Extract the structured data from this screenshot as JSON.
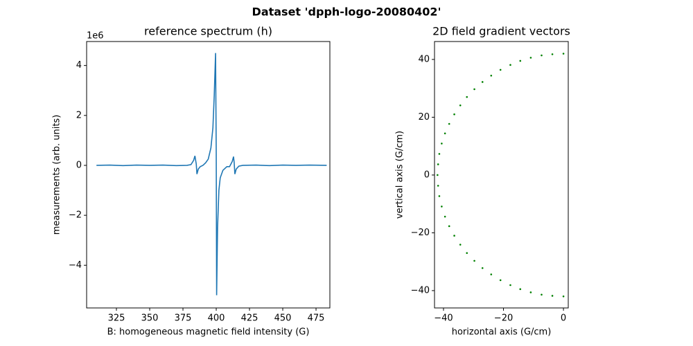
{
  "title": "Dataset 'dpph-logo-20080402'",
  "chart_data": [
    {
      "type": "line",
      "title": "reference spectrum (h)",
      "x_label": "B: homogeneous magnetic field intensity (G)",
      "y_label": "measurements (arb. units)",
      "offset_text": "1e6",
      "color": "#1f77b4",
      "x": [
        310,
        320,
        330,
        340,
        350,
        360,
        370,
        378,
        381,
        383,
        384,
        385,
        385.5,
        386.5,
        388,
        390,
        392,
        394,
        396,
        397.5,
        398.5,
        399.5,
        400,
        400.3,
        401,
        402,
        403,
        405,
        408,
        410,
        412,
        413,
        413.5,
        414,
        415,
        417,
        420,
        430,
        440,
        450,
        460,
        470,
        483
      ],
      "values": [
        0,
        0.01,
        -0.01,
        0.01,
        0,
        0.01,
        -0.01,
        0,
        0.03,
        0.2,
        0.38,
        0.05,
        -0.35,
        -0.15,
        -0.05,
        0,
        0.1,
        0.25,
        0.7,
        1.5,
        2.8,
        4.5,
        0.5,
        -5.2,
        -2.5,
        -1.0,
        -0.5,
        -0.2,
        -0.05,
        -0.05,
        0.15,
        0.35,
        0.1,
        -0.35,
        -0.15,
        -0.03,
        0,
        0.01,
        -0.01,
        0.01,
        0,
        0.01,
        0
      ],
      "xlim": [
        302.6,
        485.4
      ],
      "xticks": [
        325,
        350,
        375,
        400,
        425,
        450,
        475
      ],
      "ylim": [
        -5.71,
        4.96
      ],
      "yticks": [
        {
          "value": -4,
          "label": "−4"
        },
        {
          "value": -2,
          "label": "−2"
        },
        0,
        2,
        4
      ]
    },
    {
      "type": "scatter",
      "title": "2D field gradient vectors",
      "x_label": "horizontal axis (G/cm)",
      "y_label": "vertical axis (G/cm)",
      "color": "green",
      "x": [
        0,
        -3.7,
        -7.3,
        -10.9,
        -14.4,
        -17.7,
        -21.0,
        -24.1,
        -27.0,
        -29.7,
        -32.2,
        -34.4,
        -36.4,
        -38.1,
        -39.5,
        -40.6,
        -41.4,
        -41.8,
        -42,
        -41.8,
        -41.4,
        -40.6,
        -39.5,
        -38.1,
        -36.4,
        -34.4,
        -32.2,
        -29.7,
        -27.0,
        -24.1,
        -21.0,
        -17.7,
        -14.4,
        -10.9,
        -7.3,
        -3.7,
        0
      ],
      "values": [
        -42,
        -41.8,
        -41.4,
        -40.6,
        -39.5,
        -38.1,
        -36.4,
        -34.4,
        -32.2,
        -29.7,
        -27.0,
        -24.1,
        -21.0,
        -17.7,
        -14.4,
        -10.9,
        -7.3,
        -3.7,
        0,
        3.7,
        7.3,
        10.9,
        14.4,
        17.7,
        21.0,
        24.1,
        27.0,
        29.7,
        32.2,
        34.4,
        36.4,
        38.1,
        39.5,
        40.6,
        41.4,
        41.8,
        42
      ],
      "xlim": [
        -43.0,
        1.6
      ],
      "xticks": [
        {
          "value": -40,
          "label": "−40"
        },
        {
          "value": -20,
          "label": "−20"
        },
        0
      ],
      "ylim": [
        -46.0,
        46.2
      ],
      "yticks": [
        {
          "value": -40,
          "label": "−40"
        },
        {
          "value": -20,
          "label": "−20"
        },
        0,
        20,
        40
      ]
    }
  ]
}
